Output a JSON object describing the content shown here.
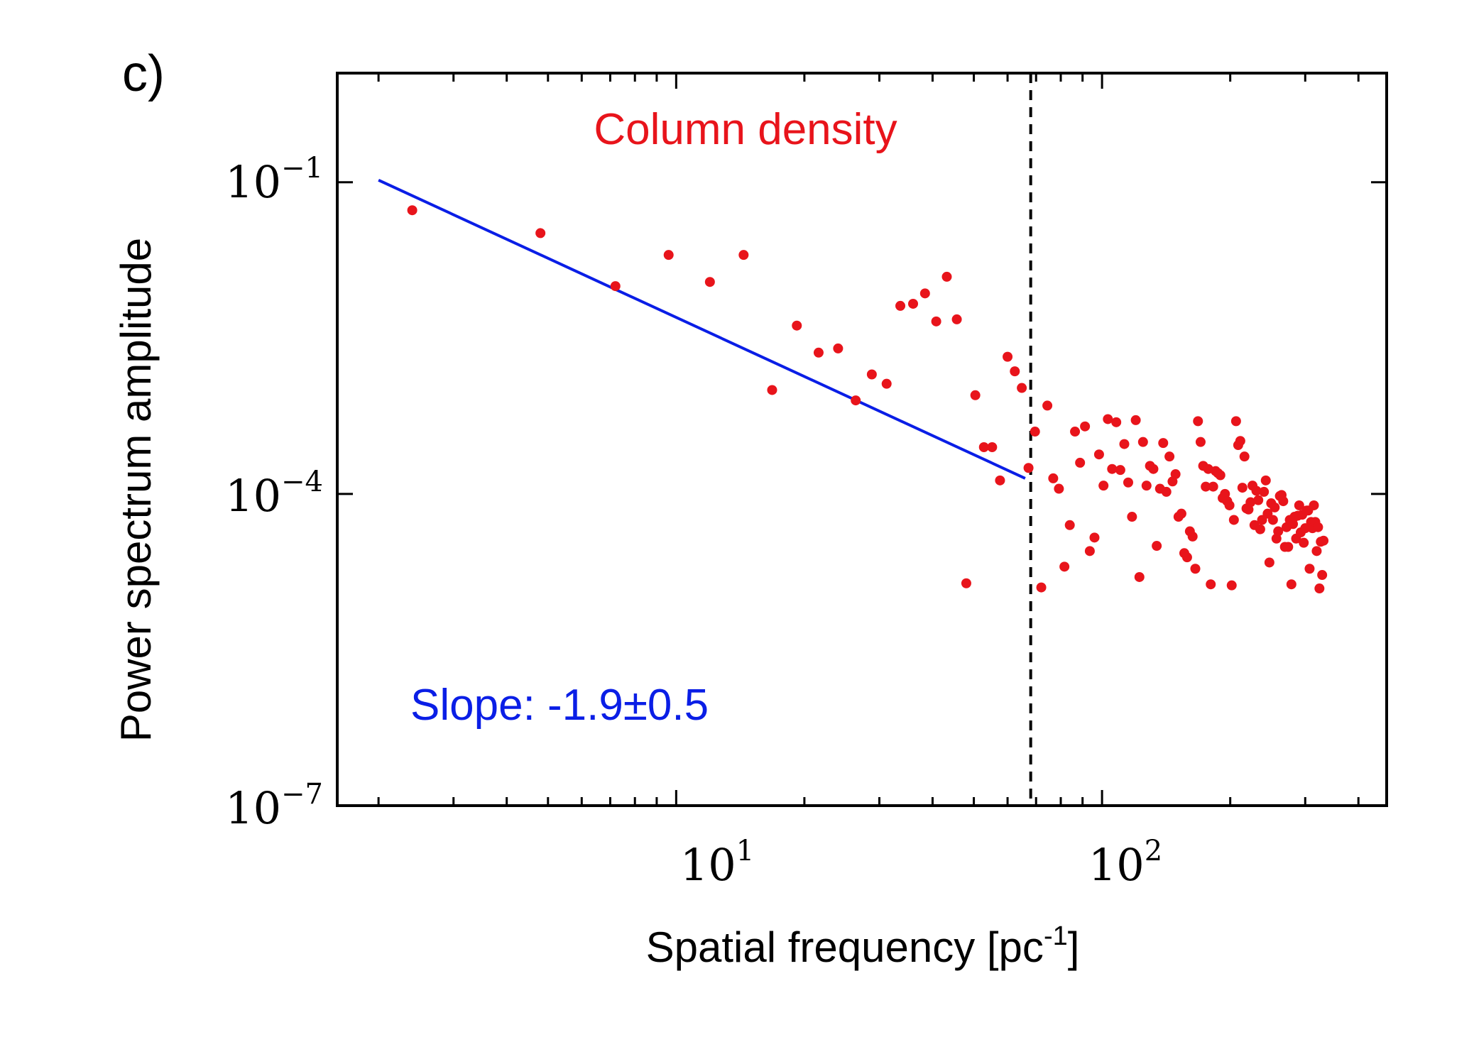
{
  "panel_label": "c)",
  "chart_data": {
    "type": "scatter",
    "x_scale": "log",
    "y_scale": "log",
    "xlabel": "Spatial frequency [pc",
    "xlabel_superscript": "-1",
    "xlabel_suffix": "]",
    "ylabel": "Power spectrum amplitude",
    "xlim": [
      1.6,
      466
    ],
    "ylim_log10": [
      -7,
      0.05
    ],
    "x_ticks": [
      {
        "base": "10",
        "exp": "1",
        "value": 10
      },
      {
        "base": "10",
        "exp": "2",
        "value": 100
      }
    ],
    "y_ticks": [
      {
        "base": "10",
        "exp": "−1",
        "value_log10": -1
      },
      {
        "base": "10",
        "exp": "−4",
        "value_log10": -4
      },
      {
        "base": "10",
        "exp": "−7",
        "value_log10": -7
      }
    ],
    "series": [
      {
        "name": "Column density",
        "label": "Column density",
        "color": "#e8141b",
        "points": [
          [
            2.4,
            -1.27
          ],
          [
            4.8,
            -1.49
          ],
          [
            7.2,
            -2.0
          ],
          [
            9.6,
            -1.7
          ],
          [
            12.0,
            -1.96
          ],
          [
            14.4,
            -1.7
          ],
          [
            16.8,
            -3.0
          ],
          [
            19.2,
            -2.38
          ],
          [
            21.6,
            -2.64
          ],
          [
            24.0,
            -2.6
          ],
          [
            26.4,
            -3.1
          ],
          [
            28.8,
            -2.85
          ],
          [
            31.2,
            -2.94
          ],
          [
            33.6,
            -2.19
          ],
          [
            36.0,
            -2.17
          ],
          [
            38.4,
            -2.07
          ],
          [
            40.8,
            -2.34
          ],
          [
            43.2,
            -1.91
          ],
          [
            45.6,
            -2.32
          ],
          [
            48.0,
            -4.86
          ],
          [
            50.4,
            -3.05
          ],
          [
            52.8,
            -3.55
          ],
          [
            55.2,
            -3.55
          ],
          [
            57.6,
            -3.87
          ],
          [
            60.0,
            -2.68
          ],
          [
            62.4,
            -2.82
          ],
          [
            64.8,
            -2.98
          ],
          [
            67.2,
            -3.75
          ],
          [
            69.6,
            -3.4
          ],
          [
            72.0,
            -4.9
          ],
          [
            74.4,
            -3.15
          ],
          [
            76.8,
            -3.85
          ],
          [
            79.2,
            -3.95
          ],
          [
            81.6,
            -4.7
          ],
          [
            84.0,
            -4.3
          ],
          [
            86.4,
            -3.4
          ],
          [
            88.8,
            -3.7
          ],
          [
            91.2,
            -3.35
          ],
          [
            93.6,
            -4.55
          ],
          [
            96.0,
            -4.42
          ],
          [
            98.4,
            -3.62
          ],
          [
            100.8,
            -3.92
          ],
          [
            103.2,
            -3.28
          ],
          [
            105.6,
            -3.76
          ],
          [
            108.0,
            -3.31
          ],
          [
            110.4,
            -3.77
          ],
          [
            112.8,
            -3.52
          ],
          [
            115.2,
            -3.89
          ],
          [
            117.6,
            -4.22
          ],
          [
            120.0,
            -3.29
          ],
          [
            122.4,
            -4.8
          ],
          [
            124.8,
            -3.5
          ],
          [
            127.2,
            -3.92
          ],
          [
            129.6,
            -3.73
          ],
          [
            132.0,
            -3.76
          ],
          [
            134.4,
            -4.5
          ],
          [
            136.8,
            -3.95
          ],
          [
            139.2,
            -3.51
          ],
          [
            141.6,
            -3.98
          ],
          [
            144.0,
            -3.64
          ],
          [
            146.4,
            -3.88
          ],
          [
            148.8,
            -3.81
          ],
          [
            151.2,
            -4.22
          ],
          [
            153.6,
            -4.19
          ],
          [
            156.0,
            -4.57
          ],
          [
            158.4,
            -4.61
          ],
          [
            160.8,
            -4.36
          ],
          [
            163.2,
            -4.41
          ],
          [
            165.6,
            -4.72
          ],
          [
            168.0,
            -3.3
          ],
          [
            170.4,
            -3.5
          ],
          [
            172.8,
            -3.73
          ],
          [
            175.2,
            -3.93
          ],
          [
            177.6,
            -3.76
          ],
          [
            180.0,
            -4.87
          ],
          [
            182.4,
            -3.93
          ],
          [
            184.8,
            -3.78
          ],
          [
            187.2,
            -3.8
          ],
          [
            189.6,
            -3.82
          ],
          [
            192.0,
            -4.04
          ],
          [
            194.4,
            -4.0
          ],
          [
            196.8,
            -4.07
          ],
          [
            199.2,
            -4.11
          ],
          [
            201.6,
            -4.88
          ],
          [
            204.0,
            -4.25
          ],
          [
            206.4,
            -3.3
          ],
          [
            208.8,
            -3.53
          ],
          [
            211.2,
            -3.49
          ],
          [
            213.6,
            -3.94
          ],
          [
            216.0,
            -3.64
          ],
          [
            218.4,
            -4.14
          ],
          [
            220.8,
            -4.15
          ],
          [
            223.2,
            -4.08
          ],
          [
            225.6,
            -3.92
          ],
          [
            228.0,
            -4.3
          ],
          [
            230.4,
            -3.97
          ],
          [
            232.8,
            -4.06
          ],
          [
            235.2,
            -4.34
          ],
          [
            237.6,
            -4.25
          ],
          [
            240.0,
            -3.98
          ],
          [
            242.4,
            -3.87
          ],
          [
            244.8,
            -4.19
          ],
          [
            247.2,
            -4.66
          ],
          [
            249.6,
            -4.09
          ],
          [
            252.0,
            -4.25
          ],
          [
            254.4,
            -4.13
          ],
          [
            256.8,
            -4.43
          ],
          [
            259.2,
            -4.36
          ],
          [
            261.6,
            -4.02
          ],
          [
            264.0,
            -4.01
          ],
          [
            266.4,
            -4.07
          ],
          [
            268.8,
            -4.51
          ],
          [
            271.2,
            -4.32
          ],
          [
            273.6,
            -4.51
          ],
          [
            276.0,
            -4.25
          ],
          [
            278.4,
            -4.87
          ],
          [
            280.8,
            -4.29
          ],
          [
            283.2,
            -4.22
          ],
          [
            285.6,
            -4.43
          ],
          [
            288.0,
            -4.21
          ],
          [
            290.4,
            -4.11
          ],
          [
            292.8,
            -4.37
          ],
          [
            295.2,
            -4.2
          ],
          [
            297.6,
            -4.47
          ],
          [
            300.0,
            -4.33
          ],
          [
            302.4,
            -4.16
          ],
          [
            304.8,
            -4.16
          ],
          [
            307.2,
            -4.72
          ],
          [
            309.6,
            -4.27
          ],
          [
            312.0,
            -4.33
          ],
          [
            314.4,
            -4.11
          ],
          [
            316.8,
            -4.27
          ],
          [
            319.2,
            -4.55
          ],
          [
            321.6,
            -4.32
          ],
          [
            324.0,
            -4.91
          ],
          [
            326.4,
            -4.46
          ],
          [
            328.8,
            -4.78
          ],
          [
            331.2,
            -4.45
          ]
        ]
      }
    ],
    "cutoff_x": 68.0,
    "fit": {
      "label": "Slope: -1.9±0.5",
      "color": "#0a1ee6",
      "x_range": [
        2.0,
        66.0
      ],
      "y_start_log10": -0.98,
      "y_end_log10": -3.85
    }
  }
}
